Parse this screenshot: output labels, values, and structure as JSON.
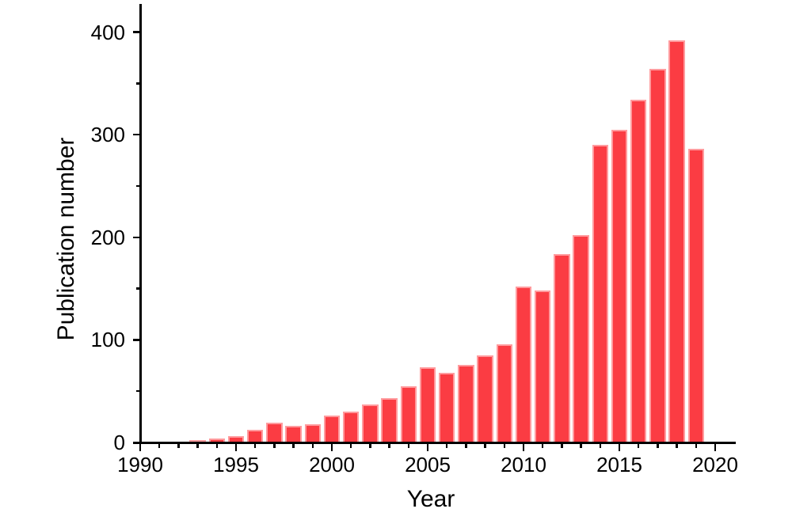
{
  "chart_data": {
    "type": "bar",
    "title": "",
    "xlabel": "Year",
    "ylabel": "Publication number",
    "x": [
      1990,
      1991,
      1992,
      1993,
      1994,
      1995,
      1996,
      1997,
      1998,
      1999,
      2000,
      2001,
      2002,
      2003,
      2004,
      2005,
      2006,
      2007,
      2008,
      2009,
      2010,
      2011,
      2012,
      2013,
      2014,
      2015,
      2016,
      2017,
      2018,
      2019
    ],
    "values": [
      1,
      1,
      1,
      2,
      4,
      6,
      12,
      19,
      16,
      18,
      26,
      30,
      37,
      43,
      55,
      73,
      68,
      76,
      85,
      96,
      152,
      148,
      184,
      202,
      290,
      305,
      334,
      364,
      392,
      286
    ],
    "xlim": [
      1989.6,
      2021
    ],
    "ylim": [
      0,
      425
    ],
    "x_major_ticks": [
      1990,
      1995,
      2000,
      2005,
      2010,
      2015,
      2020
    ],
    "x_tick_labels": [
      "1990",
      "1995",
      "2000",
      "2005",
      "2010",
      "2015",
      "2020"
    ],
    "y_major_ticks": [
      0,
      100,
      200,
      300,
      400
    ],
    "y_tick_labels": [
      "0",
      "100",
      "200",
      "300",
      "400"
    ],
    "y_minor_ticks": [
      50,
      150,
      250,
      350
    ],
    "grid": false,
    "legend": null,
    "colors": {
      "bar_fill": "#fb3c43",
      "bar_border": "#ff9b9e",
      "axis": "#000000",
      "text": "#000000",
      "background": "#ffffff"
    }
  }
}
